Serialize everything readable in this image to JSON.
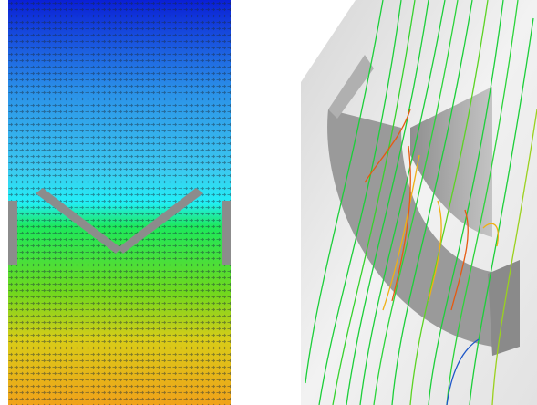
{
  "figure": {
    "panels": [
      {
        "id": "left",
        "kind": "velocity-vector-field",
        "colormap": [
          "#0a1fd6",
          "#2a8fe8",
          "#22e6f0",
          "#1ee85a",
          "#78d81f",
          "#e0c814",
          "#f0a21a"
        ]
      },
      {
        "id": "right",
        "kind": "3d-streamlines",
        "line_colors": [
          "#1ccf3a",
          "#9ad21e",
          "#f0b014",
          "#e65a10",
          "#1e57c8"
        ]
      }
    ]
  }
}
